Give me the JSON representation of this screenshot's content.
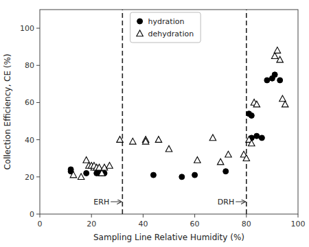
{
  "chart_data": {
    "type": "scatter",
    "xlabel": "Sampling Line Relative Humidity (%)",
    "ylabel": "Collection Efficiency, CE (%)",
    "series": [
      {
        "name": "hydration",
        "color": "black",
        "marker": "circle",
        "x": [
          12,
          12,
          18,
          22,
          23,
          24,
          25,
          44,
          55,
          60,
          72,
          81,
          82,
          82,
          84,
          86,
          88,
          90,
          91,
          93
        ],
        "values": [
          23,
          24,
          22,
          22,
          22,
          22,
          22,
          21,
          20,
          21,
          23,
          54,
          53,
          41,
          42,
          41,
          72,
          73,
          75,
          72
        ]
      },
      {
        "name": "dehydration",
        "color": "black",
        "marker": "open-triangle",
        "x": [
          13,
          16,
          18,
          19,
          20,
          21,
          21,
          22,
          23,
          24,
          25,
          27,
          31,
          36,
          41,
          41,
          46,
          50,
          61,
          67,
          70,
          73,
          79,
          80,
          81,
          82,
          83,
          84,
          91,
          92,
          93,
          94,
          95
        ],
        "values": [
          21,
          20,
          29,
          26,
          26,
          25,
          26,
          25,
          25,
          22,
          25,
          26,
          40,
          39,
          40,
          39,
          40,
          35,
          29,
          41,
          28,
          32,
          32,
          30,
          40,
          38,
          60,
          59,
          85,
          88,
          83,
          62,
          59
        ]
      }
    ],
    "annotations": [
      {
        "text": "ERH",
        "x": 32
      },
      {
        "text": "DRH",
        "x": 80
      }
    ],
    "xlim": [
      0,
      100
    ],
    "ylim": [
      0,
      110
    ],
    "xticks": [
      0,
      20,
      40,
      60,
      80,
      100
    ],
    "yticks": [
      0,
      20,
      40,
      60,
      80,
      100
    ],
    "grid": false,
    "legend": "top"
  }
}
